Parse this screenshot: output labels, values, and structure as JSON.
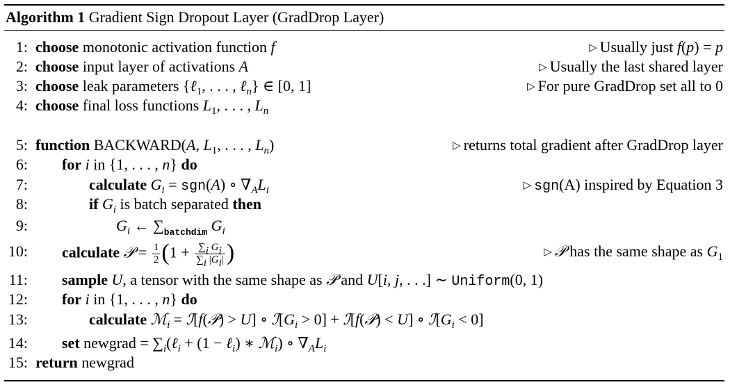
{
  "caption": {
    "label": "Algorithm 1",
    "title": "Gradient Sign Dropout Layer (GradDrop Layer)"
  },
  "lines": [
    {
      "num": "1:",
      "text": "choose monotonic activation function f",
      "comment": "Usually just f(p) = p"
    },
    {
      "num": "2:",
      "text": "choose input layer of activations A",
      "comment": "Usually the last shared layer"
    },
    {
      "num": "3:",
      "text": "choose leak parameters {ℓ1, . . . , ℓn} ∈ [0, 1]",
      "comment": "For pure GradDrop set all to 0"
    },
    {
      "num": "4:",
      "text": "choose final loss functions L1, . . . , Ln",
      "comment": ""
    },
    {
      "num": "5:",
      "text": "function BACKWARD(A, L1, . . . , Ln)",
      "comment": "returns total gradient after GradDrop layer"
    },
    {
      "num": "6:",
      "text": "for i in {1, . . . , n} do",
      "comment": ""
    },
    {
      "num": "7:",
      "text": "calculate Gi = sgn(A) ∘ ∇A Li",
      "comment": "sgn(A) inspired by Equation 3"
    },
    {
      "num": "8:",
      "text": "if Gi is batch separated then",
      "comment": ""
    },
    {
      "num": "9:",
      "text": "Gi ← ∑batchdim Gi",
      "comment": ""
    },
    {
      "num": "10:",
      "text": "calculate 𝒫 = 1/2 (1 + ∑i Gi / ∑i |Gi|)",
      "comment": "𝒫 has the same shape as G1"
    },
    {
      "num": "11:",
      "text": "sample U, a tensor with the same shape as 𝒫 and U[i, j, . . .] ∼ Uniform(0, 1)",
      "comment": ""
    },
    {
      "num": "12:",
      "text": "for i in {1, . . . , n} do",
      "comment": ""
    },
    {
      "num": "13:",
      "text": "calculate ℳi = ℐ[f(𝒫) > U] ∘ ℐ[Gi > 0] + ℐ[f(𝒫) < U] ∘ ℐ[Gi < 0]",
      "comment": ""
    },
    {
      "num": "14:",
      "text": "set newgrad = ∑i(ℓi + (1 − ℓi) ∗ ℳi) ∘ ∇A Li",
      "comment": ""
    },
    {
      "num": "15:",
      "text": "return newgrad",
      "comment": ""
    }
  ]
}
